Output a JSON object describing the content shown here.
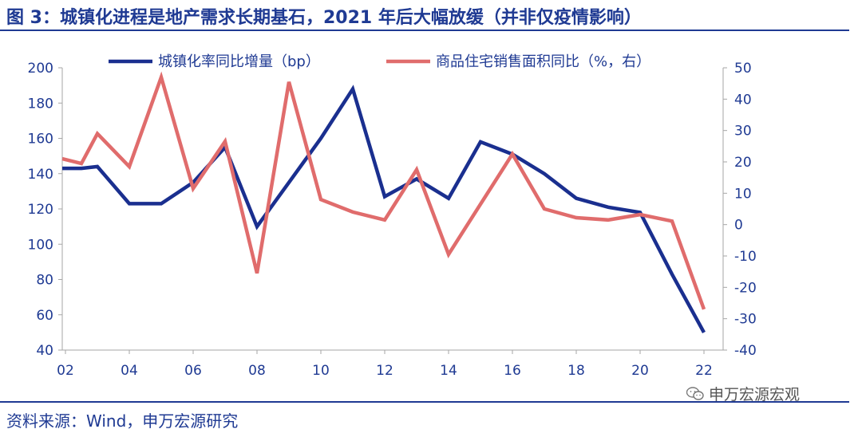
{
  "header": {
    "title": "图 3：城镇化进程是地产需求长期基石，2021 年后大幅放缓（并非仅疫情影响）"
  },
  "footer": {
    "source": "资料来源：Wind，申万宏源研究",
    "watermark": "申万宏源宏观"
  },
  "chart_data": {
    "type": "line",
    "title": "",
    "x": [
      2002,
      2003,
      2004,
      2005,
      2006,
      2007,
      2008,
      2009,
      2010,
      2011,
      2012,
      2013,
      2014,
      2015,
      2016,
      2017,
      2018,
      2019,
      2020,
      2021,
      2022
    ],
    "x_tick_labels": [
      "02",
      "04",
      "06",
      "08",
      "10",
      "12",
      "14",
      "16",
      "18",
      "20",
      "22"
    ],
    "x_tick_values": [
      2002,
      2004,
      2006,
      2008,
      2010,
      2012,
      2014,
      2016,
      2018,
      2020,
      2022
    ],
    "ylim_left": [
      40,
      200
    ],
    "yticks_left": [
      "200",
      "180",
      "160",
      "140",
      "120",
      "100",
      "80",
      "60",
      "40"
    ],
    "ylim_right": [
      -40,
      50
    ],
    "yticks_right": [
      "50",
      "40",
      "30",
      "20",
      "10",
      "0",
      "-10",
      "-20",
      "-30",
      "-40"
    ],
    "grid": false,
    "legend_position": "top",
    "series": [
      {
        "name": "城镇化率同比增量（bp）",
        "axis": "left",
        "color": "#1a2f8f",
        "points": [
          [
            2001.9,
            143
          ],
          [
            2002.5,
            143
          ],
          [
            2003.0,
            144
          ],
          [
            2004.0,
            123
          ],
          [
            2005.0,
            123
          ],
          [
            2006.0,
            135
          ],
          [
            2007.0,
            155
          ],
          [
            2008.0,
            110
          ],
          [
            2009.0,
            135
          ],
          [
            2010.0,
            160
          ],
          [
            2011.0,
            188
          ],
          [
            2012.0,
            127
          ],
          [
            2013.0,
            137
          ],
          [
            2014.0,
            126
          ],
          [
            2015.0,
            158
          ],
          [
            2016.0,
            151
          ],
          [
            2017.0,
            140
          ],
          [
            2018.0,
            126
          ],
          [
            2019.0,
            121
          ],
          [
            2020.0,
            118
          ],
          [
            2021.0,
            83
          ],
          [
            2022.0,
            50
          ]
        ]
      },
      {
        "name": "商品住宅销售面积同比（%，右）",
        "axis": "right",
        "color": "#e06c6c",
        "points": [
          [
            2001.9,
            21
          ],
          [
            2002.5,
            19.5
          ],
          [
            2003.0,
            29
          ],
          [
            2004.0,
            18.5
          ],
          [
            2005.0,
            47
          ],
          [
            2006.0,
            11.5
          ],
          [
            2007.0,
            26.5
          ],
          [
            2008.0,
            -15.5
          ],
          [
            2009.0,
            45.5
          ],
          [
            2010.0,
            8
          ],
          [
            2011.0,
            4
          ],
          [
            2012.0,
            1.5
          ],
          [
            2013.0,
            17.5
          ],
          [
            2014.0,
            -9.5
          ],
          [
            2015.0,
            6.5
          ],
          [
            2016.0,
            22.5
          ],
          [
            2017.0,
            5
          ],
          [
            2018.0,
            2.2
          ],
          [
            2019.0,
            1.5
          ],
          [
            2020.0,
            3.2
          ],
          [
            2021.0,
            1.1
          ],
          [
            2022.0,
            -27
          ]
        ]
      }
    ]
  }
}
